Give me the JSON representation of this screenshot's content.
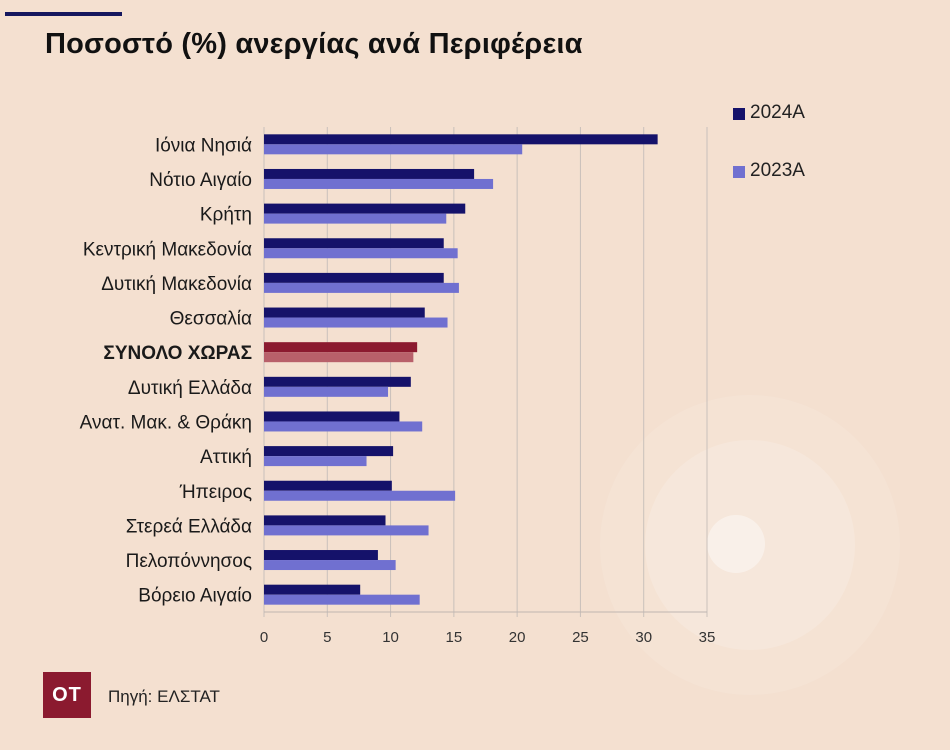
{
  "title": "Ποσοστό (%) ανεργίας ανά Περιφέρεια",
  "source": "Πηγή: ΕΛΣΤΑΤ",
  "logo": "OT",
  "colors": {
    "background": "#f4e0d0",
    "series_2024": "#15126a",
    "series_2023": "#7070d0",
    "highlight_2024": "#8b1a2f",
    "highlight_2023": "#b8606a"
  },
  "chart_data": {
    "type": "bar",
    "orientation": "horizontal",
    "categories": [
      "Ιόνια Νησιά",
      "Νότιο Αιγαίο",
      "Κρήτη",
      "Κεντρική Μακεδονία",
      "Δυτική Μακεδονία",
      "Θεσσαλία",
      "ΣΥΝΟΛΟ ΧΩΡΑΣ",
      "Δυτική Ελλάδα",
      "Ανατ. Μακ. & Θράκη",
      "Αττική",
      "Ήπειρος",
      "Στερεά Ελλάδα",
      "Πελοπόννησος",
      "Βόρειο Αιγαίο"
    ],
    "highlight_category": "ΣΥΝΟΛΟ ΧΩΡΑΣ",
    "series": [
      {
        "name": "2024Α",
        "values": [
          31.1,
          16.6,
          15.9,
          14.2,
          14.2,
          12.7,
          12.1,
          11.6,
          10.7,
          10.2,
          10.1,
          9.6,
          9.0,
          7.6
        ]
      },
      {
        "name": "2023Α",
        "values": [
          20.4,
          18.1,
          14.4,
          15.3,
          15.4,
          14.5,
          11.8,
          9.8,
          12.5,
          8.1,
          15.1,
          13.0,
          10.4,
          12.3
        ]
      }
    ],
    "xlim": [
      0,
      35
    ],
    "xticks": [
      "0",
      "5",
      "10",
      "15",
      "20",
      "25",
      "30",
      "35"
    ],
    "grid": "vertical",
    "legend_position": "top-right"
  }
}
